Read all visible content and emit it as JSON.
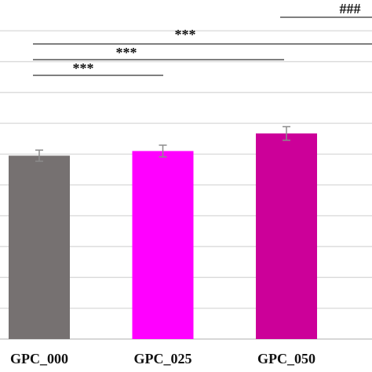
{
  "chart_data": {
    "type": "bar",
    "categories": [
      "GPC_000",
      "GPC_025",
      "GPC_050"
    ],
    "values": [
      5.95,
      6.1,
      6.67
    ],
    "errors": [
      0.18,
      0.19,
      0.22
    ],
    "colors": [
      "#767171",
      "#ff00ff",
      "#cc0099"
    ],
    "ylim": [
      0,
      11
    ],
    "grid_lines": [
      1,
      2,
      3,
      4,
      5,
      6,
      7,
      8,
      9,
      10
    ],
    "annotations": [
      {
        "label": "***"
      },
      {
        "label": "***"
      },
      {
        "label": "***"
      },
      {
        "label": "###"
      }
    ]
  }
}
